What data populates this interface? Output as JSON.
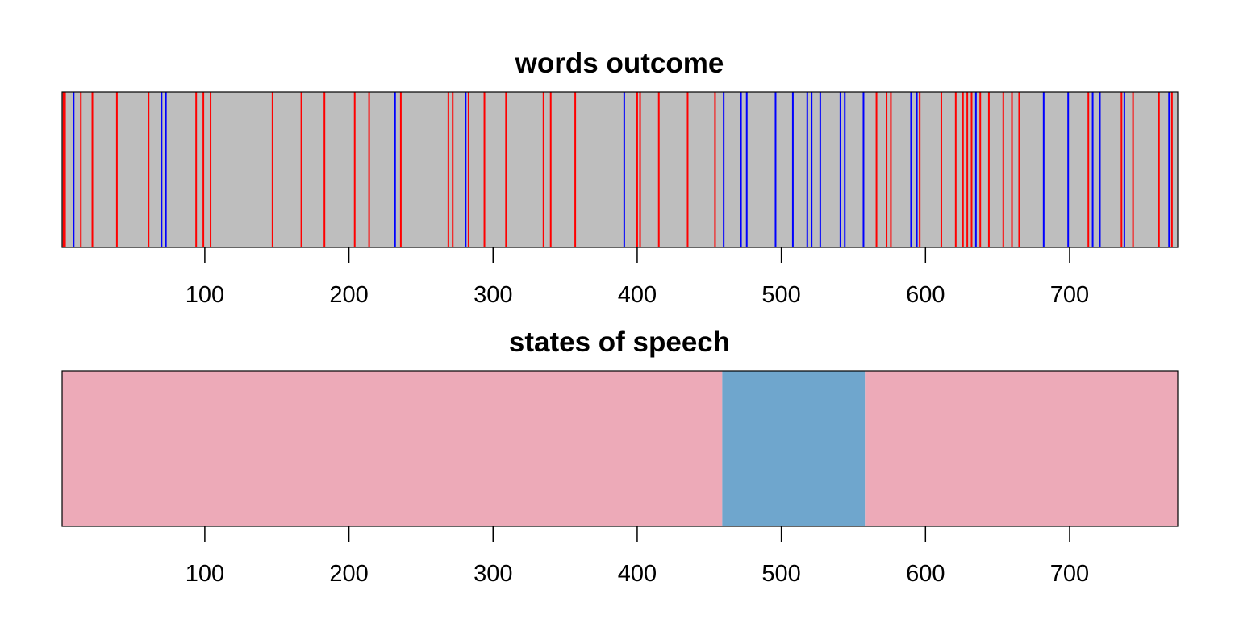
{
  "chart_data": [
    {
      "type": "event-strip",
      "title": "words outcome",
      "xlim": [
        1,
        775
      ],
      "x_ticks": [
        100,
        200,
        300,
        400,
        500,
        600,
        700
      ],
      "x_tick_labels": [
        "100",
        "200",
        "300",
        "400",
        "500",
        "600",
        "700"
      ],
      "background_color": "#bebebe",
      "series": [
        {
          "color": "#ff0000",
          "x": [
            2,
            3,
            14,
            22,
            39,
            61,
            94,
            99,
            104,
            147,
            167,
            183,
            204,
            214,
            236,
            269,
            272,
            283,
            294,
            309,
            335,
            340,
            357,
            400,
            402,
            415,
            435,
            454,
            566,
            573,
            576,
            596,
            611,
            621,
            626,
            629,
            632,
            638,
            644,
            654,
            660,
            665,
            713,
            736,
            744,
            762,
            771
          ]
        },
        {
          "color": "#0000ff",
          "x": [
            9,
            70,
            73,
            232,
            281,
            391,
            460,
            472,
            476,
            496,
            508,
            518,
            521,
            527,
            541,
            544,
            557,
            590,
            594,
            635,
            682,
            699,
            716,
            721,
            738,
            769
          ]
        }
      ]
    },
    {
      "type": "state-strip",
      "title": "states of speech",
      "xlim": [
        1,
        775
      ],
      "x_ticks": [
        100,
        200,
        300,
        400,
        500,
        600,
        700
      ],
      "x_tick_labels": [
        "100",
        "200",
        "300",
        "400",
        "500",
        "600",
        "700"
      ],
      "segments": [
        {
          "start": 1,
          "end": 459,
          "color": "#edaab8"
        },
        {
          "start": 459,
          "end": 558,
          "color": "#6fa6cd"
        },
        {
          "start": 558,
          "end": 775,
          "color": "#edaab8"
        }
      ]
    }
  ]
}
